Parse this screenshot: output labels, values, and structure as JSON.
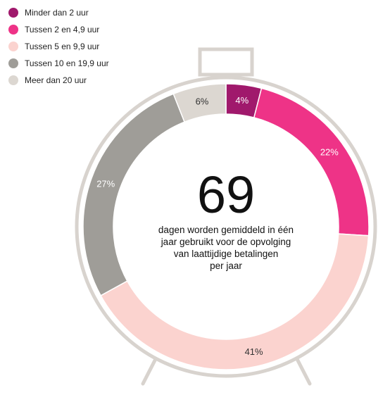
{
  "chart_data": {
    "type": "donut",
    "categories": [
      "Minder dan 2 uur",
      "Tussen 2 en 4,9 uur",
      "Tussen 5 en 9,9 uur",
      "Tussen 10 en 19,9 uur",
      "Meer dan 20 uur"
    ],
    "values": [
      4,
      22,
      41,
      27,
      6
    ],
    "value_labels": [
      "4%",
      "22%",
      "41%",
      "27%",
      "6%"
    ],
    "colors": [
      "#a0196c",
      "#ee3387",
      "#fbd3cf",
      "#9f9d98",
      "#dcd7d1"
    ],
    "label_colors": [
      "#ffffff",
      "#ffffff",
      "#333333",
      "#ffffff",
      "#333333"
    ],
    "legend_position": "top-left",
    "center": {
      "value": "69",
      "lines": [
        "dagen worden gemiddeld in één",
        "jaar gebruikt voor de opvolging",
        "van laattijdige betalingen",
        "per jaar"
      ]
    },
    "frame_color": "#d8d3ce"
  }
}
